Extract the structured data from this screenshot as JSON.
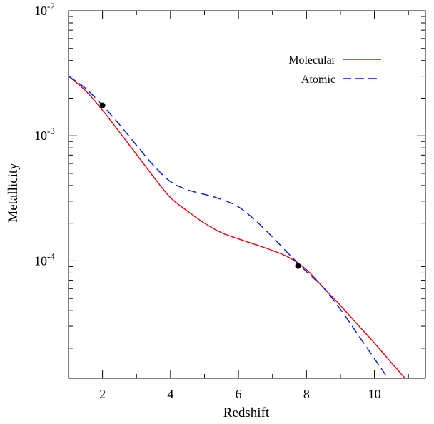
{
  "chart_data": {
    "type": "line",
    "title": "",
    "xlabel": "Redshift",
    "ylabel": "Metallicity",
    "xlim": [
      1,
      11.5
    ],
    "ylim": [
      1.15e-05,
      0.01
    ],
    "yscale": "log",
    "grid": false,
    "legend_position": "top-right",
    "x_ticks": [
      {
        "value": 2,
        "label": "2"
      },
      {
        "value": 4,
        "label": "4"
      },
      {
        "value": 6,
        "label": "6"
      },
      {
        "value": 8,
        "label": "8"
      },
      {
        "value": 10,
        "label": "10"
      }
    ],
    "y_ticks": [
      {
        "value": 0.01,
        "base": "10",
        "exp": "-2"
      },
      {
        "value": 0.001,
        "base": "10",
        "exp": "-3"
      },
      {
        "value": 0.0001,
        "base": "10",
        "exp": "-4"
      }
    ],
    "series": [
      {
        "name": "Molecular",
        "color": "#e8000b",
        "dash": "solid",
        "x": [
          1,
          1.5,
          2,
          2.5,
          3,
          3.5,
          4,
          4.5,
          5,
          5.5,
          6,
          6.5,
          7,
          7.5,
          8,
          8.5,
          9,
          9.5,
          10,
          10.5,
          10.9
        ],
        "y": [
          0.003,
          0.0023,
          0.0016,
          0.00107,
          0.00071,
          0.00047,
          0.00032,
          0.00025,
          0.0002,
          0.000168,
          0.00015,
          0.000135,
          0.000121,
          0.000106,
          8.5e-05,
          6.1e-05,
          4.4e-05,
          3.1e-05,
          2.2e-05,
          1.53e-05,
          1.15e-05
        ]
      },
      {
        "name": "Atomic",
        "color": "#0019d6",
        "dash": "dashed",
        "x": [
          1,
          1.5,
          2,
          2.5,
          3,
          3.5,
          4,
          4.5,
          5,
          5.5,
          6,
          6.5,
          7,
          7.5,
          8,
          8.5,
          9,
          9.5,
          10,
          10.4
        ],
        "y": [
          0.003,
          0.0024,
          0.00175,
          0.00123,
          0.00084,
          0.00058,
          0.00043,
          0.00037,
          0.00034,
          0.00031,
          0.00027,
          0.00021,
          0.000155,
          0.000112,
          8.2e-05,
          6.1e-05,
          4.1e-05,
          2.6e-05,
          1.65e-05,
          1.15e-05
        ]
      }
    ],
    "points": [
      {
        "x": 2,
        "y": 0.00175
      },
      {
        "x": 7.75,
        "y": 9.1e-05
      }
    ]
  }
}
